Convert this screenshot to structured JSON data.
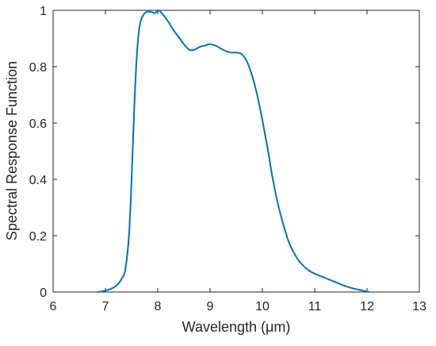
{
  "chart_data": {
    "type": "line",
    "title": "",
    "xlabel": "Wavelength (μm)",
    "ylabel": "Spectral Response Function",
    "xlim": [
      6,
      13
    ],
    "ylim": [
      0,
      1
    ],
    "x_ticks": [
      "6",
      "7",
      "8",
      "9",
      "10",
      "11",
      "12",
      "13"
    ],
    "y_ticks": [
      "0",
      "0.2",
      "0.4",
      "0.6",
      "0.8",
      "1"
    ],
    "grid": false,
    "legend": "none",
    "series": [
      {
        "color": "#0072BD",
        "x": [
          6.85,
          7.0,
          7.15,
          7.25,
          7.32,
          7.38,
          7.45,
          7.5,
          7.55,
          7.6,
          7.65,
          7.7,
          7.75,
          7.8,
          7.85,
          7.9,
          7.95,
          8.0,
          8.05,
          8.1,
          8.2,
          8.3,
          8.4,
          8.5,
          8.6,
          8.7,
          8.8,
          8.9,
          9.0,
          9.1,
          9.2,
          9.3,
          9.4,
          9.5,
          9.6,
          9.7,
          9.8,
          9.9,
          10.0,
          10.1,
          10.2,
          10.3,
          10.4,
          10.5,
          10.6,
          10.7,
          10.8,
          10.9,
          11.0,
          11.2,
          11.4,
          11.6,
          11.8,
          12.0,
          12.05
        ],
        "y": [
          0.0,
          0.005,
          0.015,
          0.03,
          0.05,
          0.08,
          0.2,
          0.4,
          0.65,
          0.84,
          0.94,
          0.975,
          0.99,
          0.995,
          0.995,
          0.993,
          0.99,
          1.0,
          0.995,
          0.985,
          0.96,
          0.93,
          0.905,
          0.88,
          0.86,
          0.86,
          0.87,
          0.875,
          0.88,
          0.875,
          0.865,
          0.855,
          0.85,
          0.85,
          0.845,
          0.82,
          0.77,
          0.7,
          0.61,
          0.51,
          0.4,
          0.31,
          0.24,
          0.18,
          0.14,
          0.11,
          0.09,
          0.075,
          0.065,
          0.05,
          0.035,
          0.02,
          0.01,
          0.002,
          0.0
        ]
      }
    ]
  }
}
